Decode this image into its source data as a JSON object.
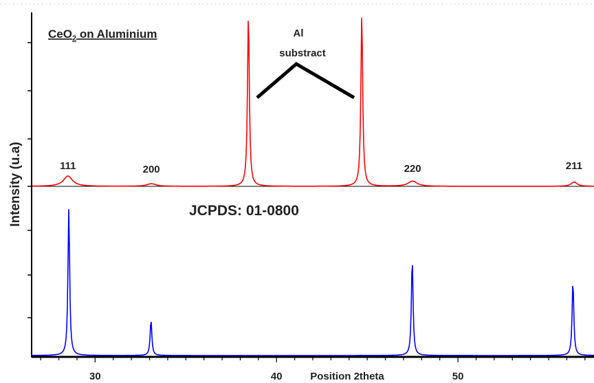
{
  "chart_data": {
    "type": "line",
    "title_main": "CeO",
    "title_sub": "2",
    "title_rest": " on Aluminium",
    "ylabel": "Intensity (u.a)",
    "xlabel": "Position 2theta",
    "reference_label": "JCPDS: 01-0800",
    "annotation": {
      "line1": "Al",
      "line2": "substract"
    },
    "xlim": [
      26.5,
      57.5
    ],
    "xticks": [
      {
        "value": 30,
        "label": "30"
      },
      {
        "value": 40,
        "label": "40"
      },
      {
        "value": 50,
        "label": "50"
      }
    ],
    "peak_labels": [
      {
        "label": "111",
        "x": 28.5
      },
      {
        "label": "200",
        "x": 33.1
      },
      {
        "label": "220",
        "x": 47.5
      },
      {
        "label": "211",
        "x": 56.4
      }
    ],
    "series": [
      {
        "role": "measured",
        "color": "#ff0000",
        "baseline": 0.02,
        "peaks": [
          {
            "x": 28.5,
            "h": 0.06,
            "w": 0.6
          },
          {
            "x": 33.1,
            "h": 0.015,
            "w": 0.6
          },
          {
            "x": 38.45,
            "h": 1.0,
            "w": 0.12
          },
          {
            "x": 44.7,
            "h": 1.0,
            "w": 0.12
          },
          {
            "x": 47.5,
            "h": 0.03,
            "w": 0.6
          },
          {
            "x": 56.4,
            "h": 0.025,
            "w": 0.4
          }
        ]
      },
      {
        "role": "reference",
        "color": "#0000ff",
        "baseline": 0.02,
        "peaks": [
          {
            "x": 28.55,
            "h": 1.0,
            "w": 0.11
          },
          {
            "x": 33.08,
            "h": 0.24,
            "w": 0.11
          },
          {
            "x": 47.48,
            "h": 0.65,
            "w": 0.11
          },
          {
            "x": 56.34,
            "h": 0.5,
            "w": 0.11
          }
        ]
      }
    ]
  },
  "colors": {
    "axis": "#000000",
    "arrow": "#000000",
    "top_border": "#cccccc"
  }
}
